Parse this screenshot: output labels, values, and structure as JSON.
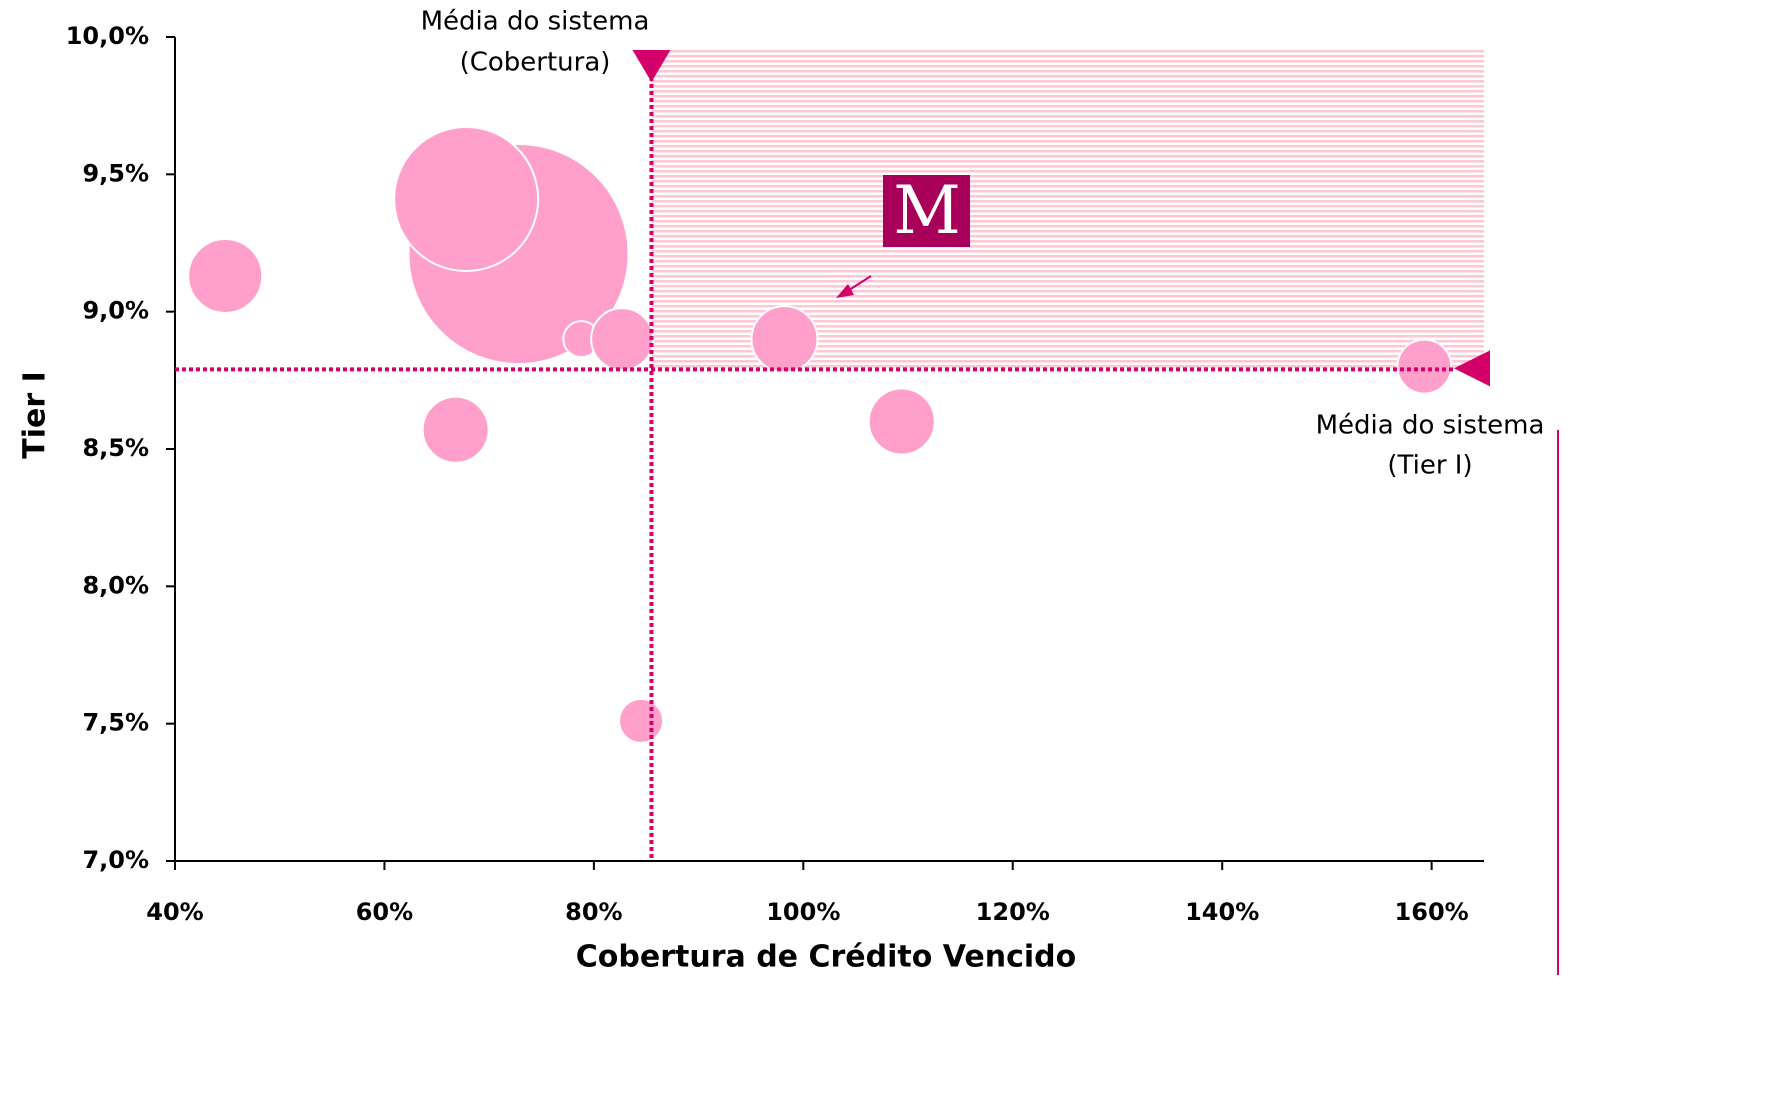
{
  "chart_data": {
    "type": "bubble",
    "x_label": "Cobertura de Crédito Vencido",
    "y_label": "Tier I",
    "x": [
      44.8,
      72.8,
      67.8,
      78.8,
      82.7,
      66.8,
      98.2,
      109.4,
      159.3,
      84.5
    ],
    "y": [
      9.13,
      9.21,
      9.41,
      8.9,
      8.9,
      8.57,
      8.9,
      8.6,
      8.8,
      7.51
    ],
    "sizes": [
      37,
      110,
      72,
      18,
      31,
      33,
      33,
      33,
      27,
      22
    ],
    "color": "#ff9fcc",
    "xlim": [
      40,
      165
    ],
    "ylim": [
      7,
      10
    ],
    "xticks": [
      {
        "value": 40,
        "label": "40%"
      },
      {
        "value": 60,
        "label": "60%"
      },
      {
        "value": 80,
        "label": "80%"
      },
      {
        "value": 100,
        "label": "100%"
      },
      {
        "value": 120,
        "label": "120%"
      },
      {
        "value": 140,
        "label": "140%"
      },
      {
        "value": 160,
        "label": "160%"
      }
    ],
    "yticks": [
      {
        "value": 7,
        "label": "7,0%"
      },
      {
        "value": 7.5,
        "label": "7,5%"
      },
      {
        "value": 8,
        "label": "8,0%"
      },
      {
        "value": 8.5,
        "label": "8,5%"
      },
      {
        "value": 9,
        "label": "9,0%"
      },
      {
        "value": 9.5,
        "label": "9,5%"
      },
      {
        "value": 10,
        "label": "10,0%"
      }
    ],
    "x_average": 85.5,
    "y_average": 8.79,
    "x_average_label": [
      "Média do sistema",
      "(Cobertura)"
    ],
    "y_average_label": [
      "Média do sistema",
      "(Tier I)"
    ],
    "logo": "M",
    "average_color": "#d4006a"
  }
}
